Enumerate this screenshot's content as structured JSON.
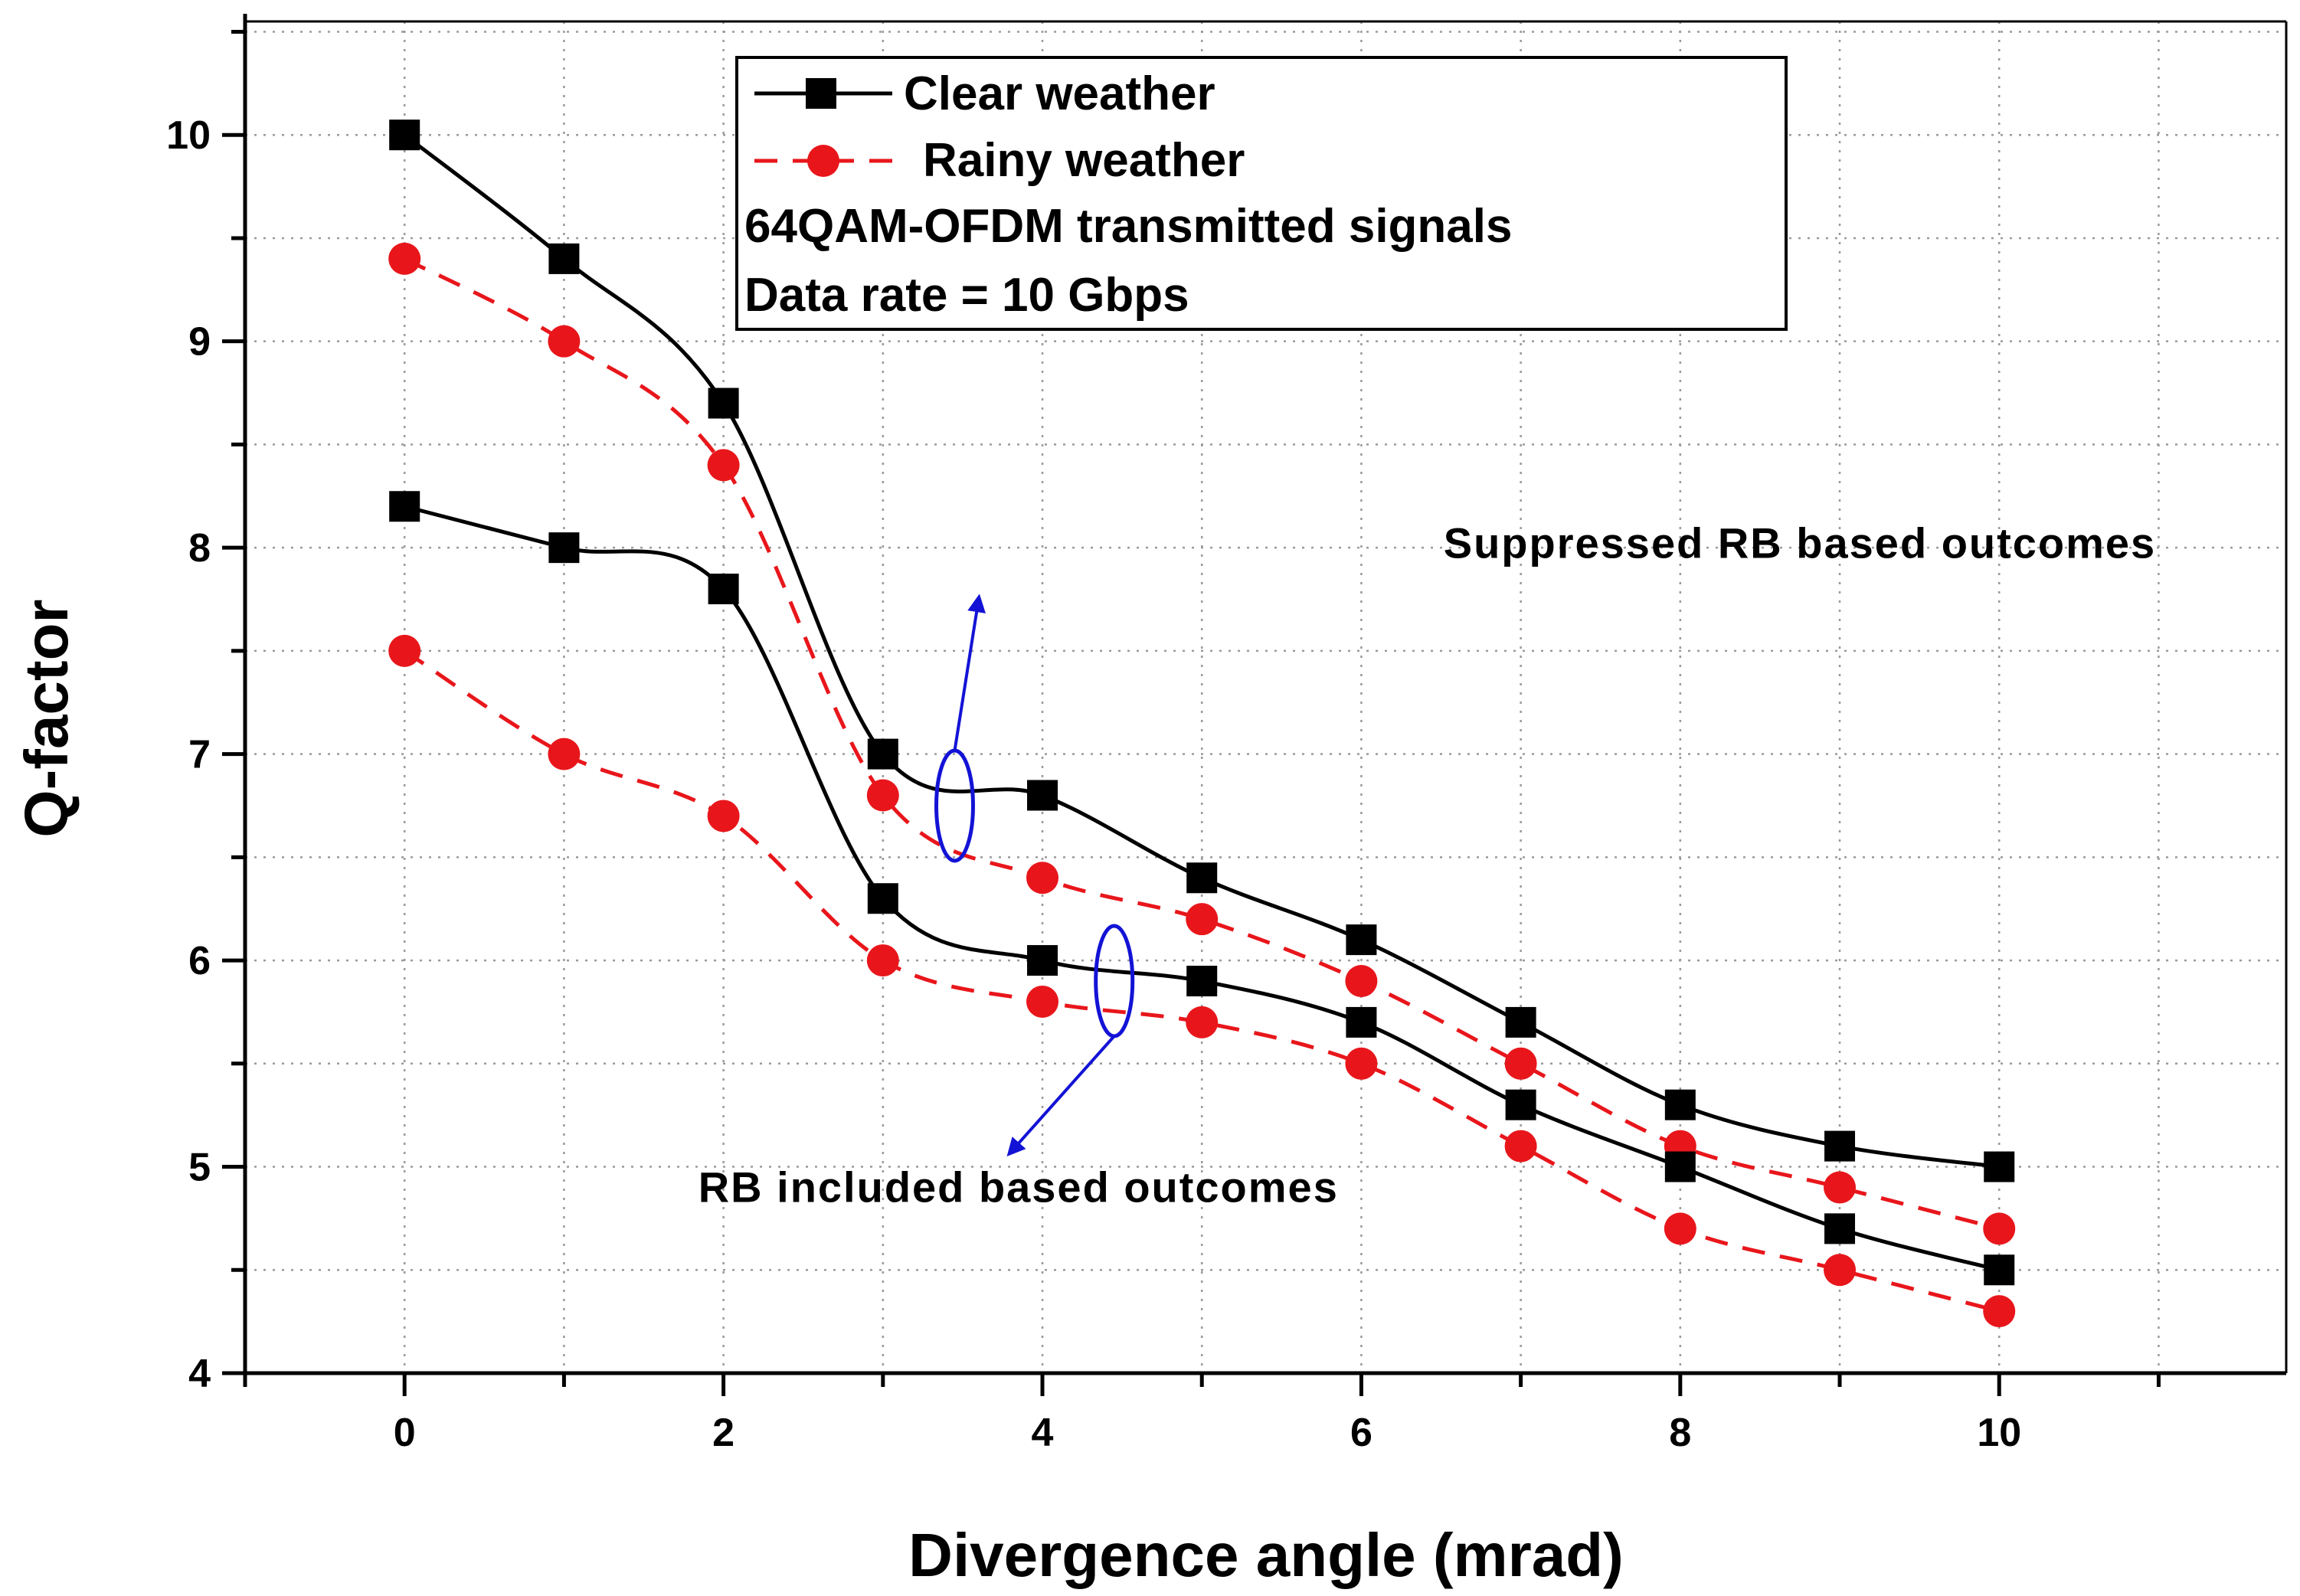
{
  "chart_data": {
    "type": "line",
    "title": "",
    "xlabel": "Divergence angle (mrad)",
    "ylabel": "Q-factor",
    "xlim": [
      -1,
      11.8
    ],
    "ylim": [
      4,
      10.55
    ],
    "x_ticks": [
      0,
      2,
      4,
      6,
      8,
      10
    ],
    "x_tick_labels": [
      "0",
      "2",
      "4",
      "6",
      "8",
      "10"
    ],
    "y_ticks": [
      4,
      5,
      6,
      7,
      8,
      9,
      10
    ],
    "y_tick_labels": [
      "4",
      "5",
      "6",
      "7",
      "8",
      "9",
      "10"
    ],
    "grid": true,
    "x": [
      0,
      1,
      2,
      3,
      4,
      5,
      6,
      7,
      8,
      9,
      10
    ],
    "series": [
      {
        "name": "Clear weather",
        "group": "Suppressed RB based outcomes",
        "style": "solid-square",
        "color": "#000000",
        "values": [
          10.0,
          9.4,
          8.7,
          7.0,
          6.8,
          6.4,
          6.1,
          5.7,
          5.3,
          5.1,
          5.0
        ]
      },
      {
        "name": "Rainy weather",
        "group": "Suppressed RB based outcomes",
        "style": "dashed-circle",
        "color": "#e8161b",
        "values": [
          9.4,
          9.0,
          8.4,
          6.8,
          6.4,
          6.2,
          5.9,
          5.5,
          5.1,
          4.9,
          4.7
        ]
      },
      {
        "name": "Clear weather",
        "group": "RB included based outcomes",
        "style": "solid-square",
        "color": "#000000",
        "values": [
          8.2,
          8.0,
          7.8,
          6.3,
          6.0,
          5.9,
          5.7,
          5.3,
          5.0,
          4.7,
          4.5
        ]
      },
      {
        "name": "Rainy weather",
        "group": "RB included based outcomes",
        "style": "dashed-circle",
        "color": "#e8161b",
        "values": [
          7.5,
          7.0,
          6.7,
          6.0,
          5.8,
          5.7,
          5.5,
          5.1,
          4.7,
          4.5,
          4.3
        ]
      }
    ],
    "legend": {
      "position": "top-center",
      "entries": [
        {
          "label": "Clear weather",
          "style": "solid-square",
          "color": "#000000"
        },
        {
          "label": "Rainy weather",
          "style": "dashed-circle",
          "color": "#e8161b"
        }
      ],
      "notes": [
        "64QAM-OFDM transmitted signals",
        "Data rate = 10 Gbps"
      ]
    },
    "annotations": [
      {
        "text": "Suppressed RB based outcomes",
        "ellipse_at": {
          "x": 3.45,
          "y": 6.75
        },
        "text_at": {
          "x": 8.75,
          "y": 7.95
        },
        "arrow_to": {
          "x": 3.6,
          "y": 7.75
        },
        "arrow_direction": "up",
        "color": "#1313d6"
      },
      {
        "text": "RB included based outcomes",
        "ellipse_at": {
          "x": 4.45,
          "y": 5.9
        },
        "text_at": {
          "x": 3.85,
          "y": 4.83
        },
        "arrow_to": {
          "x": 3.8,
          "y": 5.07
        },
        "arrow_direction": "down",
        "color": "#1313d6"
      }
    ]
  }
}
